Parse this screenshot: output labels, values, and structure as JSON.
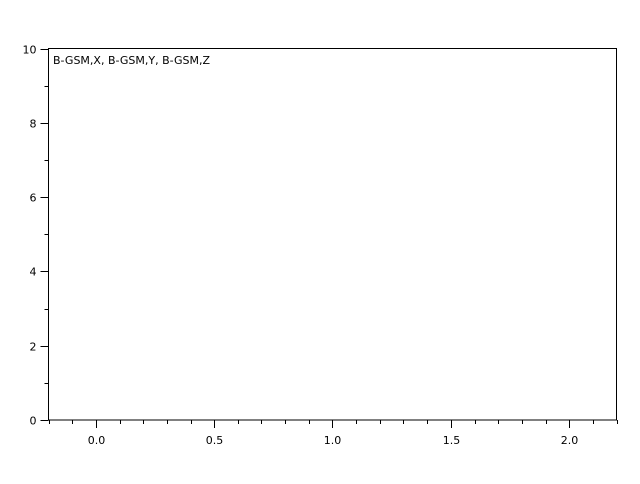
{
  "chart_data": {
    "type": "line",
    "title": "",
    "xlabel": "",
    "ylabel": "",
    "legend": {
      "text": "B-GSM,X, B-GSM,Y, B-GSM,Z",
      "placement": "top-left"
    },
    "xlim": [
      -0.2,
      2.2
    ],
    "ylim": [
      0,
      10
    ],
    "x_ticks": [
      0.0,
      0.5,
      1.0,
      1.5,
      2.0
    ],
    "x_tick_labels": [
      "0.0",
      "0.5",
      "1.0",
      "1.5",
      "2.0"
    ],
    "x_minor_step": 0.1,
    "y_ticks": [
      0,
      2,
      4,
      6,
      8,
      10
    ],
    "y_tick_labels": [
      "0",
      "2",
      "4",
      "6",
      "8",
      "10"
    ],
    "y_minor_step": 1,
    "grid": false,
    "series": [],
    "colors": {
      "axis": "#000000",
      "background": "#ffffff"
    }
  }
}
